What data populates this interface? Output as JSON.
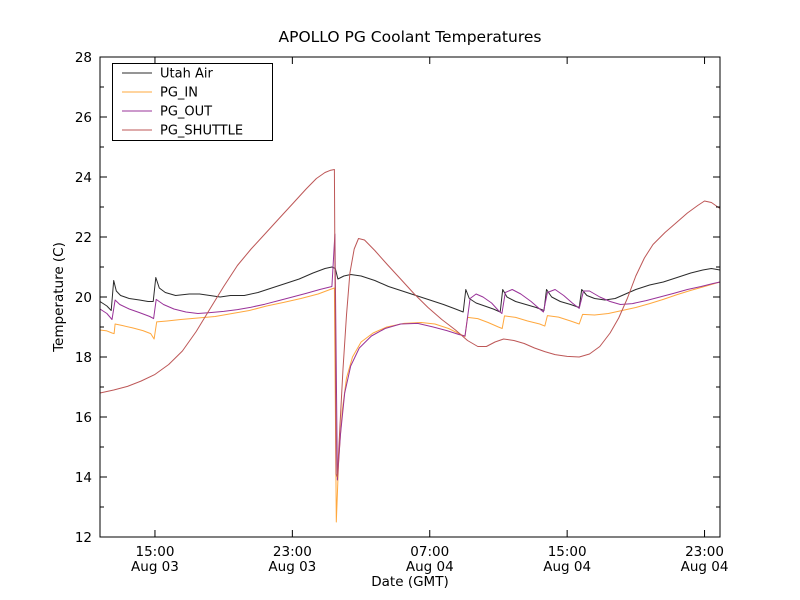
{
  "title": "APOLLO PG Coolant Temperatures",
  "chart_data": {
    "type": "line",
    "title": "APOLLO PG Coolant Temperatures",
    "xlabel": "Date (GMT)",
    "ylabel": "Temperature (C)",
    "x_unit": "hours_since_Aug03_1200_GMT",
    "xlim": [
      -0.2,
      35.9
    ],
    "ylim": [
      12,
      28
    ],
    "y_major_ticks": [
      12,
      14,
      16,
      18,
      20,
      22,
      24,
      26,
      28
    ],
    "y_minor_ticks": [
      13,
      15,
      17,
      19,
      21,
      23,
      25,
      27
    ],
    "x_ticks": [
      {
        "v": 3,
        "time": "15:00",
        "date": "Aug 03"
      },
      {
        "v": 11,
        "time": "23:00",
        "date": "Aug 03"
      },
      {
        "v": 19,
        "time": "07:00",
        "date": "Aug 04"
      },
      {
        "v": 27,
        "time": "15:00",
        "date": "Aug 04"
      },
      {
        "v": 35,
        "time": "23:00",
        "date": "Aug 04"
      }
    ],
    "grid": false,
    "legend_position": "upper-left",
    "frame_color": "#000000",
    "series": [
      {
        "name": "Utah Air",
        "color": "#2b2b2b",
        "width": 1.0,
        "points": [
          [
            -0.2,
            19.85
          ],
          [
            0.2,
            19.7
          ],
          [
            0.45,
            19.55
          ],
          [
            0.6,
            20.55
          ],
          [
            0.75,
            20.2
          ],
          [
            1.0,
            20.05
          ],
          [
            1.5,
            19.95
          ],
          [
            2.1,
            19.9
          ],
          [
            2.6,
            19.85
          ],
          [
            2.9,
            19.85
          ],
          [
            3.05,
            20.65
          ],
          [
            3.25,
            20.3
          ],
          [
            3.6,
            20.15
          ],
          [
            4.2,
            20.05
          ],
          [
            5.0,
            20.1
          ],
          [
            5.6,
            20.1
          ],
          [
            6.2,
            20.05
          ],
          [
            6.8,
            20.0
          ],
          [
            7.4,
            20.05
          ],
          [
            8.2,
            20.05
          ],
          [
            9.0,
            20.15
          ],
          [
            9.8,
            20.3
          ],
          [
            10.6,
            20.45
          ],
          [
            11.4,
            20.6
          ],
          [
            12.2,
            20.8
          ],
          [
            12.9,
            20.95
          ],
          [
            13.3,
            21.0
          ],
          [
            13.5,
            20.95
          ],
          [
            13.65,
            20.6
          ],
          [
            14.0,
            20.7
          ],
          [
            14.4,
            20.75
          ],
          [
            15.0,
            20.7
          ],
          [
            15.8,
            20.55
          ],
          [
            16.6,
            20.35
          ],
          [
            17.4,
            20.2
          ],
          [
            18.2,
            20.05
          ],
          [
            19.0,
            19.9
          ],
          [
            19.8,
            19.75
          ],
          [
            20.5,
            19.6
          ],
          [
            20.95,
            19.5
          ],
          [
            21.1,
            20.25
          ],
          [
            21.3,
            19.95
          ],
          [
            21.7,
            19.8
          ],
          [
            22.2,
            19.7
          ],
          [
            22.7,
            19.6
          ],
          [
            23.1,
            19.5
          ],
          [
            23.25,
            20.25
          ],
          [
            23.5,
            20.0
          ],
          [
            24.0,
            19.85
          ],
          [
            24.6,
            19.75
          ],
          [
            25.2,
            19.65
          ],
          [
            25.65,
            19.55
          ],
          [
            25.8,
            20.25
          ],
          [
            26.1,
            20.0
          ],
          [
            26.6,
            19.85
          ],
          [
            27.2,
            19.75
          ],
          [
            27.7,
            19.65
          ],
          [
            27.85,
            20.25
          ],
          [
            28.15,
            20.05
          ],
          [
            28.6,
            19.95
          ],
          [
            29.2,
            19.9
          ],
          [
            29.8,
            19.95
          ],
          [
            30.4,
            20.1
          ],
          [
            31.0,
            20.25
          ],
          [
            31.8,
            20.4
          ],
          [
            32.6,
            20.5
          ],
          [
            33.4,
            20.65
          ],
          [
            34.2,
            20.8
          ],
          [
            34.9,
            20.9
          ],
          [
            35.4,
            20.95
          ],
          [
            35.9,
            20.9
          ]
        ]
      },
      {
        "name": "PG_IN",
        "color": "#ffa83e",
        "width": 1.0,
        "points": [
          [
            -0.2,
            18.9
          ],
          [
            0.2,
            18.87
          ],
          [
            0.5,
            18.8
          ],
          [
            0.62,
            18.78
          ],
          [
            0.68,
            19.1
          ],
          [
            1.1,
            19.05
          ],
          [
            1.7,
            18.97
          ],
          [
            2.3,
            18.88
          ],
          [
            2.75,
            18.78
          ],
          [
            2.95,
            18.6
          ],
          [
            3.1,
            19.17
          ],
          [
            3.7,
            19.2
          ],
          [
            4.5,
            19.25
          ],
          [
            5.5,
            19.3
          ],
          [
            6.5,
            19.35
          ],
          [
            7.5,
            19.45
          ],
          [
            8.5,
            19.55
          ],
          [
            9.5,
            19.7
          ],
          [
            10.5,
            19.82
          ],
          [
            11.5,
            19.95
          ],
          [
            12.5,
            20.1
          ],
          [
            13.2,
            20.25
          ],
          [
            13.45,
            20.3
          ],
          [
            13.56,
            12.5
          ],
          [
            13.7,
            14.6
          ],
          [
            13.9,
            16.2
          ],
          [
            14.15,
            17.3
          ],
          [
            14.5,
            18.0
          ],
          [
            15.0,
            18.5
          ],
          [
            15.7,
            18.8
          ],
          [
            16.5,
            19.0
          ],
          [
            17.5,
            19.12
          ],
          [
            18.5,
            19.15
          ],
          [
            19.3,
            19.1
          ],
          [
            20.1,
            18.95
          ],
          [
            20.7,
            18.78
          ],
          [
            21.05,
            18.68
          ],
          [
            21.2,
            19.32
          ],
          [
            21.8,
            19.28
          ],
          [
            22.4,
            19.15
          ],
          [
            23.0,
            19.0
          ],
          [
            23.22,
            18.95
          ],
          [
            23.35,
            19.37
          ],
          [
            24.0,
            19.32
          ],
          [
            24.7,
            19.2
          ],
          [
            25.4,
            19.1
          ],
          [
            25.7,
            19.03
          ],
          [
            25.85,
            19.38
          ],
          [
            26.5,
            19.33
          ],
          [
            27.2,
            19.2
          ],
          [
            27.7,
            19.1
          ],
          [
            27.9,
            19.42
          ],
          [
            28.6,
            19.4
          ],
          [
            29.4,
            19.45
          ],
          [
            30.2,
            19.55
          ],
          [
            31.0,
            19.65
          ],
          [
            31.8,
            19.78
          ],
          [
            32.6,
            19.92
          ],
          [
            33.4,
            20.08
          ],
          [
            34.2,
            20.22
          ],
          [
            35.0,
            20.35
          ],
          [
            35.6,
            20.45
          ],
          [
            35.9,
            20.5
          ]
        ]
      },
      {
        "name": "PG_OUT",
        "color": "#993399",
        "width": 1.0,
        "points": [
          [
            -0.2,
            19.6
          ],
          [
            0.2,
            19.45
          ],
          [
            0.5,
            19.25
          ],
          [
            0.68,
            19.9
          ],
          [
            0.95,
            19.75
          ],
          [
            1.5,
            19.6
          ],
          [
            2.1,
            19.48
          ],
          [
            2.7,
            19.35
          ],
          [
            2.92,
            19.28
          ],
          [
            3.07,
            19.92
          ],
          [
            3.5,
            19.75
          ],
          [
            4.1,
            19.6
          ],
          [
            4.8,
            19.5
          ],
          [
            5.5,
            19.45
          ],
          [
            6.2,
            19.48
          ],
          [
            7.0,
            19.52
          ],
          [
            7.8,
            19.58
          ],
          [
            8.6,
            19.66
          ],
          [
            9.4,
            19.76
          ],
          [
            10.2,
            19.88
          ],
          [
            11.0,
            20.0
          ],
          [
            11.8,
            20.12
          ],
          [
            12.6,
            20.25
          ],
          [
            13.3,
            20.35
          ],
          [
            13.48,
            22.1
          ],
          [
            13.62,
            13.9
          ],
          [
            13.8,
            15.4
          ],
          [
            14.05,
            16.8
          ],
          [
            14.4,
            17.7
          ],
          [
            14.9,
            18.3
          ],
          [
            15.6,
            18.7
          ],
          [
            16.4,
            18.95
          ],
          [
            17.3,
            19.1
          ],
          [
            18.3,
            19.12
          ],
          [
            19.2,
            19.0
          ],
          [
            20.0,
            18.88
          ],
          [
            20.7,
            18.75
          ],
          [
            21.05,
            18.7
          ],
          [
            21.35,
            19.95
          ],
          [
            21.7,
            20.1
          ],
          [
            22.1,
            20.0
          ],
          [
            22.6,
            19.8
          ],
          [
            23.0,
            19.55
          ],
          [
            23.2,
            19.45
          ],
          [
            23.4,
            20.15
          ],
          [
            23.8,
            20.25
          ],
          [
            24.3,
            20.1
          ],
          [
            24.9,
            19.85
          ],
          [
            25.4,
            19.6
          ],
          [
            25.62,
            19.5
          ],
          [
            25.85,
            20.15
          ],
          [
            26.3,
            20.25
          ],
          [
            26.8,
            20.05
          ],
          [
            27.3,
            19.8
          ],
          [
            27.7,
            19.62
          ],
          [
            27.95,
            20.2
          ],
          [
            28.3,
            20.2
          ],
          [
            28.9,
            20.0
          ],
          [
            29.5,
            19.85
          ],
          [
            30.1,
            19.75
          ],
          [
            30.8,
            19.78
          ],
          [
            31.6,
            19.88
          ],
          [
            32.4,
            20.0
          ],
          [
            33.2,
            20.12
          ],
          [
            34.0,
            20.25
          ],
          [
            34.8,
            20.35
          ],
          [
            35.5,
            20.45
          ],
          [
            35.9,
            20.5
          ]
        ]
      },
      {
        "name": "PG_SHUTTLE",
        "color": "#bd5757",
        "width": 1.0,
        "points": [
          [
            -0.2,
            16.8
          ],
          [
            0.6,
            16.9
          ],
          [
            1.4,
            17.02
          ],
          [
            2.2,
            17.2
          ],
          [
            3.0,
            17.42
          ],
          [
            3.8,
            17.75
          ],
          [
            4.6,
            18.2
          ],
          [
            5.4,
            18.85
          ],
          [
            6.2,
            19.6
          ],
          [
            7.0,
            20.35
          ],
          [
            7.8,
            21.05
          ],
          [
            8.6,
            21.6
          ],
          [
            9.4,
            22.1
          ],
          [
            10.2,
            22.6
          ],
          [
            11.0,
            23.1
          ],
          [
            11.8,
            23.6
          ],
          [
            12.4,
            23.95
          ],
          [
            12.9,
            24.15
          ],
          [
            13.2,
            24.22
          ],
          [
            13.45,
            24.25
          ],
          [
            13.55,
            14.1
          ],
          [
            13.62,
            14.0
          ],
          [
            13.78,
            15.8
          ],
          [
            13.95,
            17.6
          ],
          [
            14.15,
            19.4
          ],
          [
            14.35,
            20.8
          ],
          [
            14.6,
            21.6
          ],
          [
            14.85,
            21.95
          ],
          [
            15.2,
            21.9
          ],
          [
            15.8,
            21.55
          ],
          [
            16.5,
            21.1
          ],
          [
            17.3,
            20.6
          ],
          [
            18.1,
            20.1
          ],
          [
            18.9,
            19.65
          ],
          [
            19.7,
            19.25
          ],
          [
            20.5,
            18.9
          ],
          [
            21.2,
            18.55
          ],
          [
            21.8,
            18.35
          ],
          [
            22.3,
            18.35
          ],
          [
            22.8,
            18.5
          ],
          [
            23.3,
            18.6
          ],
          [
            23.9,
            18.55
          ],
          [
            24.5,
            18.45
          ],
          [
            25.1,
            18.3
          ],
          [
            25.7,
            18.18
          ],
          [
            26.3,
            18.08
          ],
          [
            27.0,
            18.02
          ],
          [
            27.7,
            18.0
          ],
          [
            28.3,
            18.1
          ],
          [
            28.9,
            18.35
          ],
          [
            29.5,
            18.8
          ],
          [
            30.0,
            19.3
          ],
          [
            30.5,
            19.95
          ],
          [
            31.0,
            20.7
          ],
          [
            31.5,
            21.3
          ],
          [
            32.0,
            21.75
          ],
          [
            32.7,
            22.15
          ],
          [
            33.4,
            22.5
          ],
          [
            34.0,
            22.8
          ],
          [
            34.6,
            23.05
          ],
          [
            35.0,
            23.2
          ],
          [
            35.4,
            23.15
          ],
          [
            35.9,
            22.95
          ]
        ]
      }
    ]
  }
}
